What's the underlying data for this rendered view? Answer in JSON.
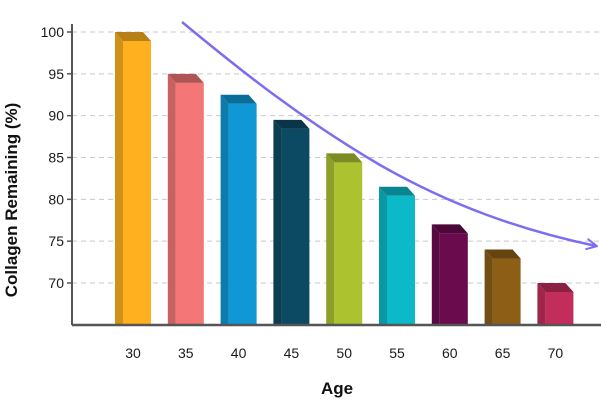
{
  "chart_data": {
    "type": "bar",
    "title": "",
    "xlabel": "Age",
    "ylabel": "Collagen Remaining (%)",
    "categories": [
      "30",
      "35",
      "40",
      "45",
      "50",
      "55",
      "60",
      "65",
      "70"
    ],
    "values": [
      100,
      95,
      92.5,
      89.5,
      85.5,
      81.5,
      77,
      74,
      70
    ],
    "ylim": [
      65,
      101.5
    ],
    "yticks": [
      "70",
      "75",
      "80",
      "85",
      "90",
      "95",
      "100"
    ],
    "grid": "horizontal-dashed",
    "bar_colors": [
      "#ffb01f",
      "#f57676",
      "#0f97d6",
      "#0c4a64",
      "#acc22f",
      "#0bb9c8",
      "#6a0b4e",
      "#8d5e16",
      "#c22d5c"
    ],
    "trend_arrow_color": "#7b6ef0",
    "trend_annotation": "downward trend arrow"
  }
}
